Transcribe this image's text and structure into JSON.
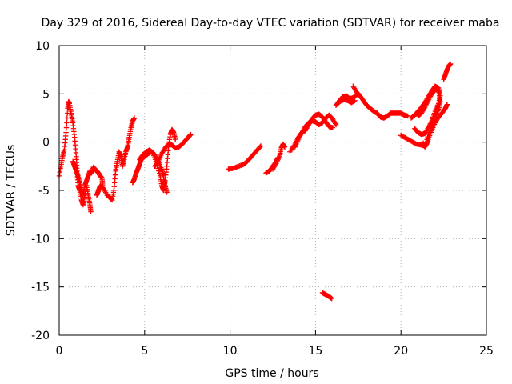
{
  "chart_data": {
    "type": "scatter",
    "title": "Day 329 of 2016, Sidereal Day-to-day VTEC variation (SDTVAR) for receiver maba",
    "xlabel": "GPS time / hours",
    "ylabel": "SDTVAR / TECUs",
    "xlim": [
      0,
      25
    ],
    "ylim": [
      -20,
      10
    ],
    "xticks": [
      0,
      5,
      10,
      15,
      20,
      25
    ],
    "yticks": [
      10,
      5,
      0,
      -5,
      -10,
      -15,
      -20
    ],
    "xtick_labels": [
      "0",
      "5",
      "10",
      "15",
      "20",
      "25"
    ],
    "ytick_labels": [
      "10",
      "5",
      "0",
      "-5",
      "-10",
      "-15",
      "-20"
    ],
    "grid": true,
    "marker": "+",
    "color": "#ff0000",
    "segments": [
      [
        [
          0.0,
          -3.5
        ],
        [
          0.1,
          -2.5
        ],
        [
          0.2,
          -1.5
        ],
        [
          0.3,
          -0.8
        ],
        [
          0.4,
          1.0
        ],
        [
          0.5,
          3.5
        ],
        [
          0.55,
          4.2
        ],
        [
          0.6,
          4.0
        ],
        [
          0.7,
          3.0
        ],
        [
          0.8,
          2.0
        ],
        [
          0.9,
          0.5
        ],
        [
          1.0,
          -1.5
        ],
        [
          1.05,
          -3.0
        ],
        [
          1.1,
          -4.5
        ],
        [
          1.2,
          -5.0
        ],
        [
          1.3,
          -6.0
        ],
        [
          1.4,
          -6.5
        ],
        [
          1.5,
          -5.5
        ],
        [
          1.6,
          -4.5
        ],
        [
          1.7,
          -5.5
        ],
        [
          1.8,
          -6.5
        ],
        [
          1.85,
          -7.2
        ]
      ],
      [
        [
          0.8,
          -2.0
        ],
        [
          0.9,
          -2.5
        ],
        [
          1.0,
          -3.0
        ],
        [
          1.1,
          -3.5
        ],
        [
          1.2,
          -4.2
        ],
        [
          1.3,
          -5.0
        ],
        [
          1.4,
          -5.5
        ],
        [
          1.5,
          -4.5
        ],
        [
          1.6,
          -4.0
        ],
        [
          1.7,
          -3.5
        ],
        [
          1.8,
          -3.0
        ],
        [
          1.9,
          -3.2
        ],
        [
          2.0,
          -2.6
        ],
        [
          2.1,
          -2.8
        ],
        [
          2.2,
          -3.0
        ],
        [
          2.3,
          -3.2
        ],
        [
          2.4,
          -3.5
        ],
        [
          2.5,
          -3.7
        ],
        [
          2.55,
          -4.5
        ]
      ],
      [
        [
          2.2,
          -5.5
        ],
        [
          2.3,
          -5.0
        ],
        [
          2.4,
          -4.5
        ],
        [
          2.6,
          -4.8
        ],
        [
          2.8,
          -5.5
        ],
        [
          3.0,
          -5.8
        ],
        [
          3.1,
          -6.0
        ],
        [
          3.2,
          -5.0
        ],
        [
          3.3,
          -3.0
        ],
        [
          3.4,
          -2.0
        ],
        [
          3.5,
          -1.0
        ],
        [
          3.6,
          -1.5
        ],
        [
          3.7,
          -2.5
        ],
        [
          3.8,
          -1.8
        ],
        [
          3.9,
          -1.0
        ],
        [
          4.0,
          -0.5
        ],
        [
          4.1,
          0.5
        ],
        [
          4.2,
          1.5
        ],
        [
          4.3,
          2.2
        ],
        [
          4.4,
          2.5
        ]
      ],
      [
        [
          4.3,
          -4.2
        ],
        [
          4.4,
          -3.8
        ],
        [
          4.5,
          -3.2
        ],
        [
          4.6,
          -2.8
        ],
        [
          4.7,
          -2.3
        ],
        [
          4.8,
          -1.8
        ],
        [
          5.0,
          -1.5
        ],
        [
          5.2,
          -1.2
        ],
        [
          5.4,
          -1.0
        ],
        [
          5.6,
          -1.3
        ],
        [
          5.8,
          -2.0
        ],
        [
          6.0,
          -2.8
        ],
        [
          6.1,
          -3.5
        ],
        [
          6.2,
          -4.5
        ],
        [
          6.3,
          -5.2
        ]
      ],
      [
        [
          4.7,
          -1.8
        ],
        [
          4.9,
          -1.3
        ],
        [
          5.1,
          -1.0
        ],
        [
          5.3,
          -0.8
        ],
        [
          5.5,
          -1.2
        ],
        [
          5.7,
          -2.2
        ],
        [
          5.9,
          -3.5
        ],
        [
          6.0,
          -4.5
        ],
        [
          6.1,
          -5.0
        ],
        [
          6.2,
          -4.0
        ],
        [
          6.3,
          -2.5
        ],
        [
          6.4,
          -0.5
        ],
        [
          6.5,
          0.8
        ],
        [
          6.6,
          1.3
        ],
        [
          6.7,
          1.0
        ],
        [
          6.8,
          0.3
        ]
      ],
      [
        [
          5.6,
          -2.5
        ],
        [
          5.8,
          -2.0
        ],
        [
          6.0,
          -1.2
        ],
        [
          6.2,
          -0.6
        ],
        [
          6.4,
          -0.2
        ],
        [
          6.6,
          -0.3
        ],
        [
          6.8,
          -0.6
        ],
        [
          7.0,
          -0.5
        ],
        [
          7.2,
          -0.2
        ],
        [
          7.4,
          0.2
        ],
        [
          7.6,
          0.6
        ],
        [
          7.7,
          0.8
        ]
      ],
      [
        [
          9.9,
          -2.8
        ],
        [
          10.2,
          -2.7
        ],
        [
          10.5,
          -2.5
        ],
        [
          10.8,
          -2.3
        ],
        [
          11.0,
          -2.0
        ],
        [
          11.2,
          -1.6
        ],
        [
          11.4,
          -1.2
        ],
        [
          11.6,
          -0.8
        ],
        [
          11.8,
          -0.4
        ]
      ],
      [
        [
          12.1,
          -3.2
        ],
        [
          12.3,
          -3.0
        ],
        [
          12.5,
          -2.5
        ],
        [
          12.7,
          -2.0
        ],
        [
          12.8,
          -1.6
        ]
      ],
      [
        [
          12.5,
          -2.8
        ],
        [
          12.7,
          -2.2
        ],
        [
          12.9,
          -1.5
        ],
        [
          13.0,
          -0.6
        ],
        [
          13.1,
          -0.2
        ],
        [
          13.2,
          -0.5
        ]
      ],
      [
        [
          13.5,
          -1.0
        ],
        [
          13.8,
          -0.2
        ],
        [
          14.0,
          0.5
        ],
        [
          14.2,
          1.0
        ],
        [
          14.4,
          1.2
        ],
        [
          14.6,
          1.8
        ],
        [
          14.8,
          2.4
        ],
        [
          15.0,
          2.8
        ],
        [
          15.2,
          2.9
        ],
        [
          15.4,
          2.6
        ],
        [
          15.6,
          2.1
        ],
        [
          15.8,
          1.6
        ],
        [
          16.0,
          1.5
        ]
      ],
      [
        [
          13.8,
          -0.5
        ],
        [
          14.0,
          0.3
        ],
        [
          14.2,
          1.0
        ],
        [
          14.4,
          1.6
        ],
        [
          14.6,
          2.0
        ],
        [
          14.8,
          2.2
        ],
        [
          15.0,
          2.1
        ],
        [
          15.2,
          1.8
        ],
        [
          15.4,
          2.0
        ],
        [
          15.6,
          2.5
        ],
        [
          15.8,
          2.8
        ],
        [
          16.0,
          2.4
        ],
        [
          16.2,
          1.8
        ]
      ],
      [
        [
          15.4,
          -15.6
        ],
        [
          15.6,
          -15.8
        ],
        [
          15.8,
          -16.0
        ],
        [
          15.95,
          -16.2
        ]
      ],
      [
        [
          16.2,
          3.8
        ],
        [
          16.4,
          4.3
        ],
        [
          16.6,
          4.7
        ],
        [
          16.8,
          4.8
        ],
        [
          17.0,
          4.5
        ],
        [
          17.2,
          4.6
        ],
        [
          17.4,
          4.9
        ],
        [
          17.5,
          5.0
        ]
      ],
      [
        [
          16.3,
          4.0
        ],
        [
          16.5,
          4.3
        ],
        [
          16.7,
          4.4
        ],
        [
          16.9,
          4.3
        ],
        [
          17.1,
          4.1
        ],
        [
          17.3,
          4.3
        ]
      ],
      [
        [
          17.2,
          5.8
        ],
        [
          17.4,
          5.2
        ],
        [
          17.6,
          4.8
        ],
        [
          17.8,
          4.3
        ],
        [
          18.0,
          3.8
        ],
        [
          18.2,
          3.5
        ],
        [
          18.4,
          3.2
        ],
        [
          18.6,
          3.0
        ],
        [
          18.8,
          2.6
        ],
        [
          19.0,
          2.5
        ],
        [
          19.2,
          2.7
        ],
        [
          19.4,
          3.0
        ],
        [
          19.6,
          3.0
        ],
        [
          19.8,
          3.0
        ],
        [
          20.0,
          3.0
        ],
        [
          20.2,
          2.8
        ],
        [
          20.4,
          2.7
        ]
      ],
      [
        [
          20.0,
          0.7
        ],
        [
          20.3,
          0.4
        ],
        [
          20.6,
          0.1
        ],
        [
          20.9,
          -0.2
        ],
        [
          21.2,
          -0.3
        ],
        [
          21.4,
          -0.4
        ],
        [
          21.5,
          -0.2
        ],
        [
          21.6,
          0.3
        ],
        [
          21.8,
          1.2
        ],
        [
          22.0,
          2.0
        ],
        [
          22.2,
          2.6
        ],
        [
          22.4,
          3.0
        ],
        [
          22.6,
          3.5
        ],
        [
          22.7,
          3.9
        ]
      ],
      [
        [
          20.6,
          2.5
        ],
        [
          20.8,
          2.8
        ],
        [
          21.0,
          3.2
        ],
        [
          21.2,
          3.6
        ],
        [
          21.4,
          4.1
        ],
        [
          21.6,
          4.7
        ],
        [
          21.8,
          5.3
        ],
        [
          22.0,
          5.8
        ],
        [
          22.2,
          5.6
        ],
        [
          22.3,
          4.8
        ],
        [
          22.2,
          4.0
        ],
        [
          22.0,
          3.2
        ],
        [
          21.8,
          2.2
        ],
        [
          21.6,
          1.5
        ],
        [
          21.4,
          0.9
        ],
        [
          21.2,
          0.8
        ],
        [
          21.0,
          1.0
        ],
        [
          20.8,
          1.4
        ]
      ],
      [
        [
          21.0,
          2.7
        ],
        [
          21.2,
          3.0
        ],
        [
          21.4,
          3.6
        ],
        [
          21.6,
          4.3
        ],
        [
          21.8,
          5.0
        ],
        [
          22.0,
          5.4
        ],
        [
          22.1,
          5.6
        ],
        [
          22.2,
          5.2
        ],
        [
          22.3,
          4.2
        ],
        [
          22.2,
          3.4
        ],
        [
          22.0,
          2.7
        ],
        [
          21.8,
          1.8
        ],
        [
          21.6,
          0.8
        ],
        [
          21.4,
          -0.5
        ],
        [
          21.3,
          -0.1
        ]
      ],
      [
        [
          22.5,
          6.5
        ],
        [
          22.6,
          7.0
        ],
        [
          22.7,
          7.5
        ],
        [
          22.8,
          7.9
        ],
        [
          22.9,
          8.1
        ]
      ]
    ]
  }
}
